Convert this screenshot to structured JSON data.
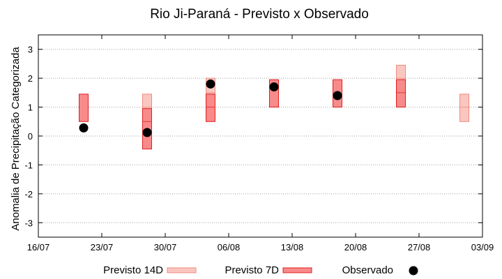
{
  "chart_data": {
    "type": "range-bar with scatter",
    "title": "Rio Ji-Paraná - Previsto x Observado",
    "ylabel": "Anomalia de Precipitação Categorizada",
    "xlabel": "",
    "ylim": [
      -3.5,
      3.5
    ],
    "yticks": [
      -3,
      -2,
      -1,
      0,
      1,
      2,
      3
    ],
    "x_ticks": [
      "16/07",
      "23/07",
      "30/07",
      "06/08",
      "13/08",
      "20/08",
      "27/08",
      "03/09"
    ],
    "x_range": [
      "16/07",
      "03/09"
    ],
    "grid": "horizontal dotted",
    "legend_position": "bottom",
    "colors": {
      "previsto_14d_fill": "#f9c7c0",
      "previsto_14d_stroke": "#f08a80",
      "previsto_7d_fill": "#f88a8a",
      "previsto_7d_stroke": "#e02020",
      "observado": "#000000"
    },
    "series": [
      {
        "name": "Previsto 14D",
        "kind": "range",
        "data": [
          {
            "date": "28/07",
            "low": 0.5,
            "high": 1.45,
            "mid": 1.0
          },
          {
            "date": "04/08",
            "low": 1.0,
            "high": 2.0,
            "mid": 1.5
          },
          {
            "date": "25/08",
            "low": 1.5,
            "high": 2.45,
            "mid": 2.0
          },
          {
            "date": "01/09",
            "low": 0.5,
            "high": 1.45,
            "mid": 1.0
          }
        ]
      },
      {
        "name": "Previsto 7D",
        "kind": "range",
        "data": [
          {
            "date": "21/07",
            "low": 0.5,
            "high": 1.45
          },
          {
            "date": "28/07",
            "low": -0.45,
            "high": 0.95,
            "mid": 0.5
          },
          {
            "date": "04/08",
            "low": 0.5,
            "high": 1.45,
            "mid": 1.0
          },
          {
            "date": "11/08",
            "low": 1.0,
            "high": 1.95
          },
          {
            "date": "18/08",
            "low": 1.0,
            "high": 1.95
          },
          {
            "date": "25/08",
            "low": 1.0,
            "high": 1.95,
            "mid": 1.5
          }
        ]
      },
      {
        "name": "Observado",
        "kind": "point",
        "data": [
          {
            "date": "21/07",
            "value": 0.28
          },
          {
            "date": "28/07",
            "value": 0.12
          },
          {
            "date": "04/08",
            "value": 1.8
          },
          {
            "date": "11/08",
            "value": 1.7
          },
          {
            "date": "18/08",
            "value": 1.4
          }
        ]
      }
    ]
  }
}
